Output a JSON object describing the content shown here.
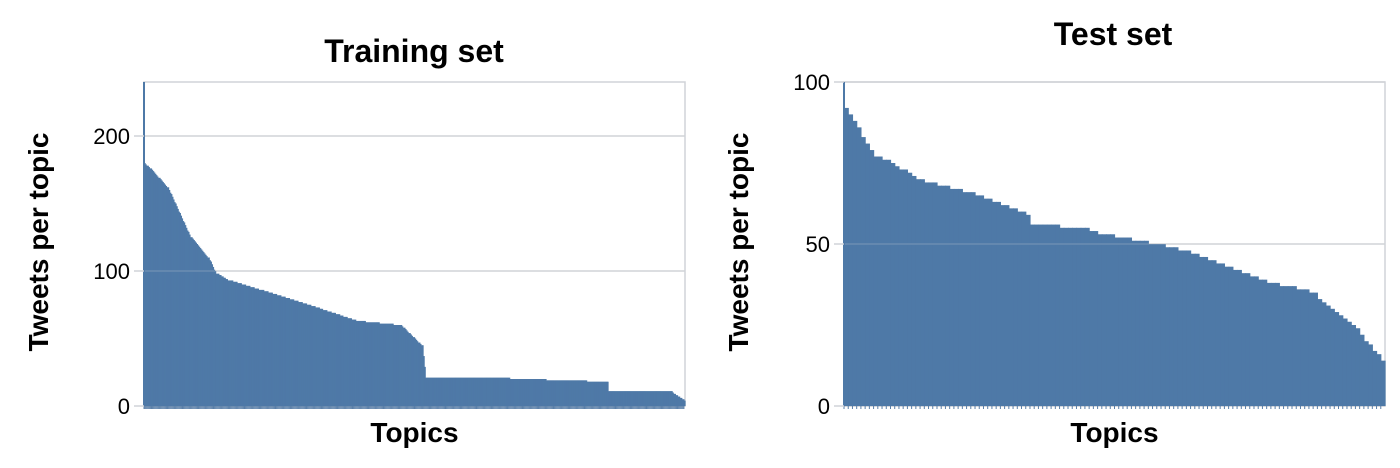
{
  "charts": [
    {
      "type": "bar",
      "title": "Training set",
      "xlabel": "Topics",
      "ylabel": "Tweets per topic",
      "ylim": [
        0,
        240
      ],
      "yticks": [
        0,
        100,
        200
      ],
      "grid": true,
      "color": "#4e79a7",
      "gridColor": "#d0d3d8",
      "segments": [
        {
          "from": 180,
          "to": 176,
          "count": 6
        },
        {
          "from": 176,
          "to": 162,
          "count": 16
        },
        {
          "from": 162,
          "to": 125,
          "count": 22
        },
        {
          "from": 125,
          "to": 110,
          "count": 16
        },
        {
          "from": 110,
          "to": 98,
          "count": 8
        },
        {
          "from": 98,
          "to": 93,
          "count": 12
        },
        {
          "from": 93,
          "to": 86,
          "count": 30
        },
        {
          "from": 86,
          "to": 76,
          "count": 40
        },
        {
          "from": 76,
          "to": 63,
          "count": 50
        },
        {
          "from": 63,
          "to": 60,
          "count": 40
        },
        {
          "from": 60,
          "to": 45,
          "count": 20
        },
        {
          "from": 45,
          "to": 21,
          "count": 4
        },
        {
          "from": 21,
          "to": 21,
          "count": 60
        },
        {
          "from": 21,
          "to": 19,
          "count": 70
        },
        {
          "from": 19,
          "to": 18,
          "count": 40
        },
        {
          "from": 11,
          "to": 11,
          "count": 60
        },
        {
          "from": 10,
          "to": 4,
          "count": 12
        }
      ]
    },
    {
      "type": "bar",
      "title": "Test set",
      "xlabel": "Topics",
      "ylabel": "Tweets per topic",
      "ylim": [
        0,
        100
      ],
      "yticks": [
        0,
        50,
        100
      ],
      "grid": true,
      "color": "#4e79a7",
      "gridColor": "#d0d3d8",
      "segments": [
        {
          "from": 92,
          "to": 77,
          "count": 8
        },
        {
          "from": 77,
          "to": 69,
          "count": 12
        },
        {
          "from": 69,
          "to": 66,
          "count": 10
        },
        {
          "from": 66,
          "to": 59,
          "count": 14
        },
        {
          "from": 56,
          "to": 55,
          "count": 14
        },
        {
          "from": 54,
          "to": 50,
          "count": 16
        },
        {
          "from": 50,
          "to": 47,
          "count": 10
        },
        {
          "from": 46,
          "to": 40,
          "count": 14
        },
        {
          "from": 39,
          "to": 35,
          "count": 14
        },
        {
          "from": 33,
          "to": 24,
          "count": 10
        },
        {
          "from": 22,
          "to": 14,
          "count": 6
        }
      ]
    }
  ]
}
